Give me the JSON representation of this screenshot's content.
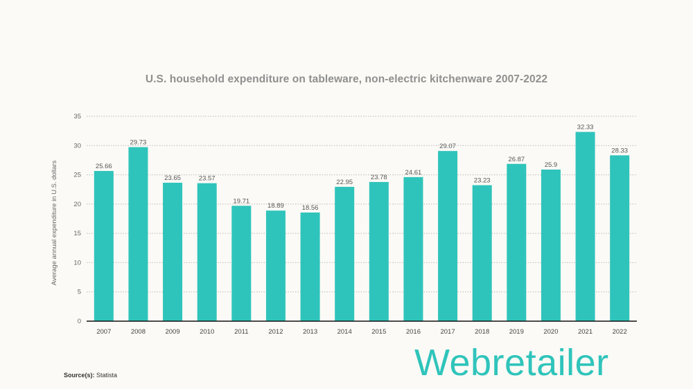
{
  "chart_data": {
    "type": "bar",
    "title": "U.S. household expenditure on tableware, non-electric kitchenware 2007-2022",
    "xlabel": "",
    "ylabel": "Average annual expenditure in U.S. dollars",
    "categories": [
      "2007",
      "2008",
      "2009",
      "2010",
      "2011",
      "2012",
      "2013",
      "2014",
      "2015",
      "2016",
      "2017",
      "2018",
      "2019",
      "2020",
      "2021",
      "2022"
    ],
    "values": [
      25.66,
      29.73,
      23.65,
      23.57,
      19.71,
      18.89,
      18.56,
      22.95,
      23.78,
      24.61,
      29.07,
      23.23,
      26.87,
      25.9,
      32.33,
      28.33
    ],
    "ylim": [
      0,
      35
    ],
    "yticks": [
      0,
      5,
      10,
      15,
      20,
      25,
      30,
      35
    ],
    "grid": "horizontal dotted",
    "bar_color": "#2fc4bb"
  },
  "source": {
    "label": "Source(s):",
    "value": "Statista"
  },
  "logo": {
    "text": "Webretailer",
    "color": "#2fc4bb"
  }
}
